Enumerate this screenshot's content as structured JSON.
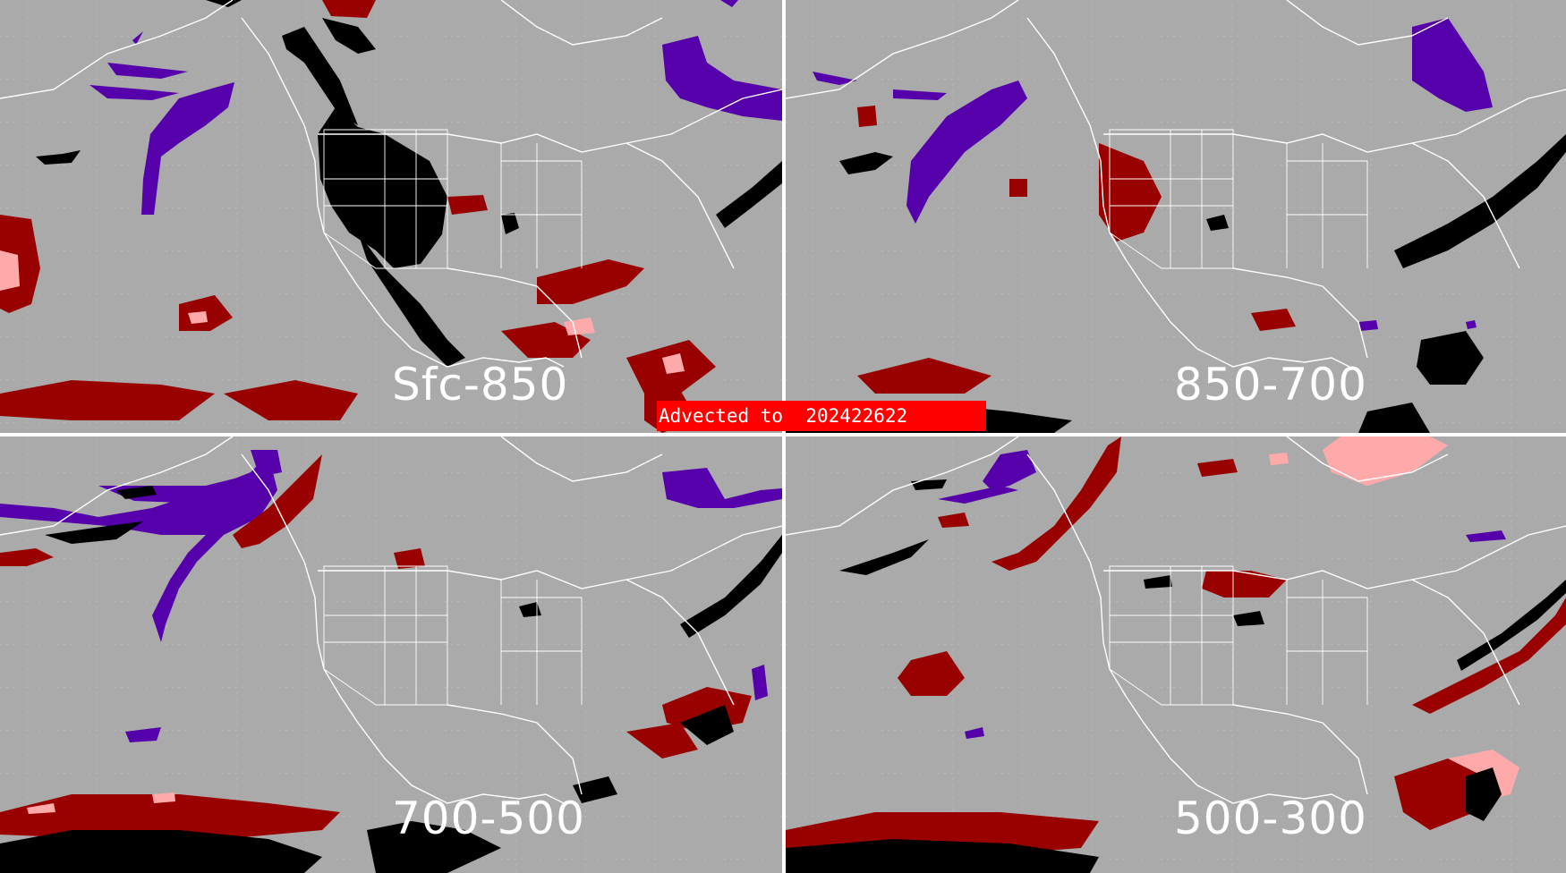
{
  "banner": {
    "text": "Advected to  202422622"
  },
  "panels": [
    {
      "label": "Sfc-850"
    },
    {
      "label": "850-700"
    },
    {
      "label": "700-500"
    },
    {
      "label": "500-300"
    }
  ],
  "colors": {
    "background": "#aaaaaa",
    "coastline": "#ffffff",
    "dark_red": "#990000",
    "pink": "#ffaaaa",
    "black": "#000000",
    "purple": "#5500aa",
    "banner": "#ff0000"
  }
}
